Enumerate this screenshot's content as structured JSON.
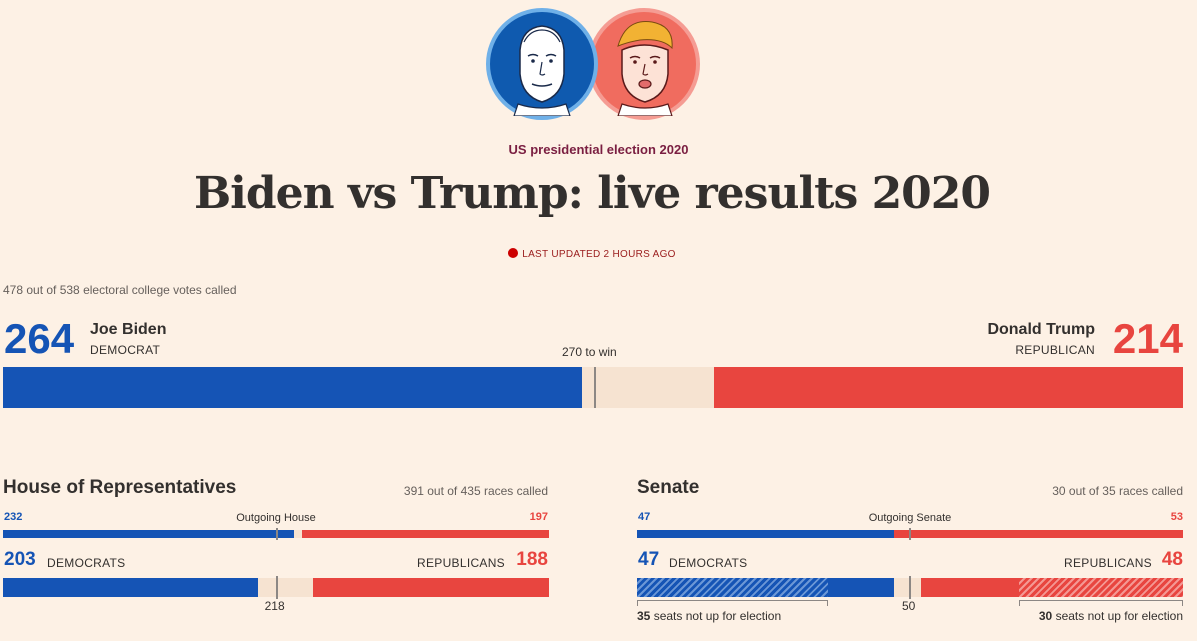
{
  "header": {
    "kicker": "US presidential election 2020",
    "title": "Biden vs Trump: live results 2020",
    "updated": "LAST UPDATED 2 HOURS AGO"
  },
  "electoral": {
    "called": "478 out of 538 electoral college votes called",
    "total": 538,
    "to_win_value": 270,
    "to_win_label": "270 to win",
    "dem": {
      "votes": "264",
      "votes_value": 264,
      "name": "Joe Biden",
      "party": "DEMOCRAT",
      "color": "#1554b5"
    },
    "rep": {
      "votes": "214",
      "votes_value": 214,
      "name": "Donald Trump",
      "party": "REPUBLICAN",
      "color": "#e8453f"
    }
  },
  "house": {
    "title": "House of Representatives",
    "races": "391 out of 435 races called",
    "total": 435,
    "outgoing_label": "Outgoing House",
    "outgoing_dem": "232",
    "outgoing_dem_value": 232,
    "outgoing_rep": "197",
    "outgoing_rep_value": 197,
    "dem_count": "203",
    "dem_count_value": 203,
    "dem_label": "DEMOCRATS",
    "rep_label": "REPUBLICANS",
    "rep_count": "188",
    "rep_count_value": 188,
    "majority": "218",
    "majority_value": 218
  },
  "senate": {
    "title": "Senate",
    "races": "30 out of 35 races called",
    "total": 100,
    "outgoing_label": "Outgoing Senate",
    "outgoing_dem": "47",
    "outgoing_dem_value": 47,
    "outgoing_rep": "53",
    "outgoing_rep_value": 53,
    "dem_count": "47",
    "dem_count_value": 47,
    "dem_label": "DEMOCRATS",
    "rep_label": "REPUBLICANS",
    "rep_count": "48",
    "rep_count_value": 48,
    "majority": "50",
    "majority_value": 50,
    "dem_not_up": "35",
    "dem_not_up_value": 35,
    "rep_not_up": "30",
    "rep_not_up_value": 30,
    "not_up_text": "seats not up for election"
  },
  "icons": {
    "biden": "biden-portrait-icon",
    "trump": "trump-portrait-icon"
  }
}
